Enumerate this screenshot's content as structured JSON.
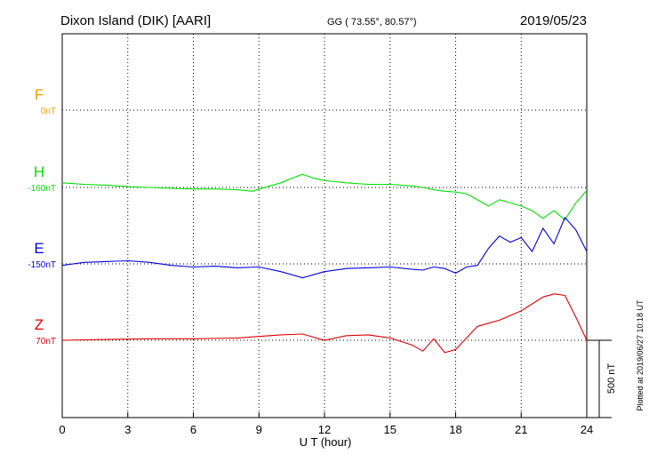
{
  "header": {
    "station": "Dixon Island (DIK)  [AARI]",
    "coords": "GG ( 73.55°,  80.57°)",
    "date": "2019/05/23"
  },
  "footer": {
    "plotted": "Plotted at 2019/06/27 10:18 UT"
  },
  "chart_data": {
    "type": "line",
    "xlabel": "U T (hour)",
    "xlim": [
      0,
      24
    ],
    "xticks": [
      0,
      3,
      6,
      9,
      12,
      15,
      18,
      21,
      24
    ],
    "xtick_labels": [
      "0",
      "3",
      "6",
      "9",
      "12",
      "15",
      "18",
      "21",
      "24"
    ],
    "grid": true,
    "scale_bar": {
      "label": "500 nT",
      "value": 500
    },
    "channels": [
      {
        "name": "F",
        "baseline_label": "0nT",
        "color": "#f5a000",
        "points": []
      },
      {
        "name": "H",
        "baseline_label": "-160nT",
        "color": "#00e000",
        "points": [
          [
            0,
            30
          ],
          [
            1,
            20
          ],
          [
            2,
            15
          ],
          [
            3,
            5
          ],
          [
            4,
            0
          ],
          [
            5,
            -5
          ],
          [
            6,
            -10
          ],
          [
            7,
            -10
          ],
          [
            8,
            -15
          ],
          [
            8.7,
            -25
          ],
          [
            9,
            -10
          ],
          [
            9.5,
            10
          ],
          [
            10,
            30
          ],
          [
            10.5,
            60
          ],
          [
            11,
            85
          ],
          [
            11.5,
            60
          ],
          [
            12,
            45
          ],
          [
            13,
            30
          ],
          [
            14,
            20
          ],
          [
            15,
            20
          ],
          [
            16,
            10
          ],
          [
            16.5,
            0
          ],
          [
            17,
            -15
          ],
          [
            17.5,
            -25
          ],
          [
            18,
            -30
          ],
          [
            18.5,
            -40
          ],
          [
            19,
            -80
          ],
          [
            19.5,
            -120
          ],
          [
            20,
            -80
          ],
          [
            20.5,
            -100
          ],
          [
            21,
            -120
          ],
          [
            21.5,
            -150
          ],
          [
            22,
            -200
          ],
          [
            22.5,
            -150
          ],
          [
            23,
            -210
          ],
          [
            23.5,
            -100
          ],
          [
            24,
            -20
          ]
        ]
      },
      {
        "name": "E",
        "baseline_label": "-150nT",
        "color": "#0000dd",
        "points": [
          [
            0,
            -10
          ],
          [
            1,
            10
          ],
          [
            2,
            15
          ],
          [
            3,
            20
          ],
          [
            4,
            10
          ],
          [
            5,
            -10
          ],
          [
            6,
            -20
          ],
          [
            7,
            -15
          ],
          [
            8,
            -25
          ],
          [
            9,
            -20
          ],
          [
            10,
            -50
          ],
          [
            11,
            -90
          ],
          [
            12,
            -50
          ],
          [
            13,
            -30
          ],
          [
            14,
            -25
          ],
          [
            15,
            -20
          ],
          [
            16,
            -35
          ],
          [
            16.5,
            -40
          ],
          [
            17,
            -20
          ],
          [
            17.5,
            -30
          ],
          [
            18,
            -60
          ],
          [
            18.5,
            -20
          ],
          [
            19,
            -10
          ],
          [
            19.5,
            100
          ],
          [
            20,
            180
          ],
          [
            20.5,
            140
          ],
          [
            21,
            170
          ],
          [
            21.5,
            80
          ],
          [
            22,
            230
          ],
          [
            22.5,
            130
          ],
          [
            23,
            300
          ],
          [
            23.5,
            220
          ],
          [
            24,
            80
          ]
        ]
      },
      {
        "name": "Z",
        "baseline_label": "70nT",
        "color": "#dd0000",
        "points": [
          [
            0,
            0
          ],
          [
            2,
            5
          ],
          [
            4,
            10
          ],
          [
            6,
            10
          ],
          [
            8,
            15
          ],
          [
            10,
            35
          ],
          [
            11,
            40
          ],
          [
            12,
            0
          ],
          [
            13,
            30
          ],
          [
            14,
            35
          ],
          [
            15,
            15
          ],
          [
            16,
            -30
          ],
          [
            16.5,
            -70
          ],
          [
            17,
            10
          ],
          [
            17.5,
            -80
          ],
          [
            18,
            -60
          ],
          [
            19,
            90
          ],
          [
            20,
            130
          ],
          [
            21,
            190
          ],
          [
            22,
            280
          ],
          [
            22.5,
            300
          ],
          [
            23,
            290
          ],
          [
            23.5,
            150
          ],
          [
            24,
            0
          ]
        ]
      }
    ]
  }
}
